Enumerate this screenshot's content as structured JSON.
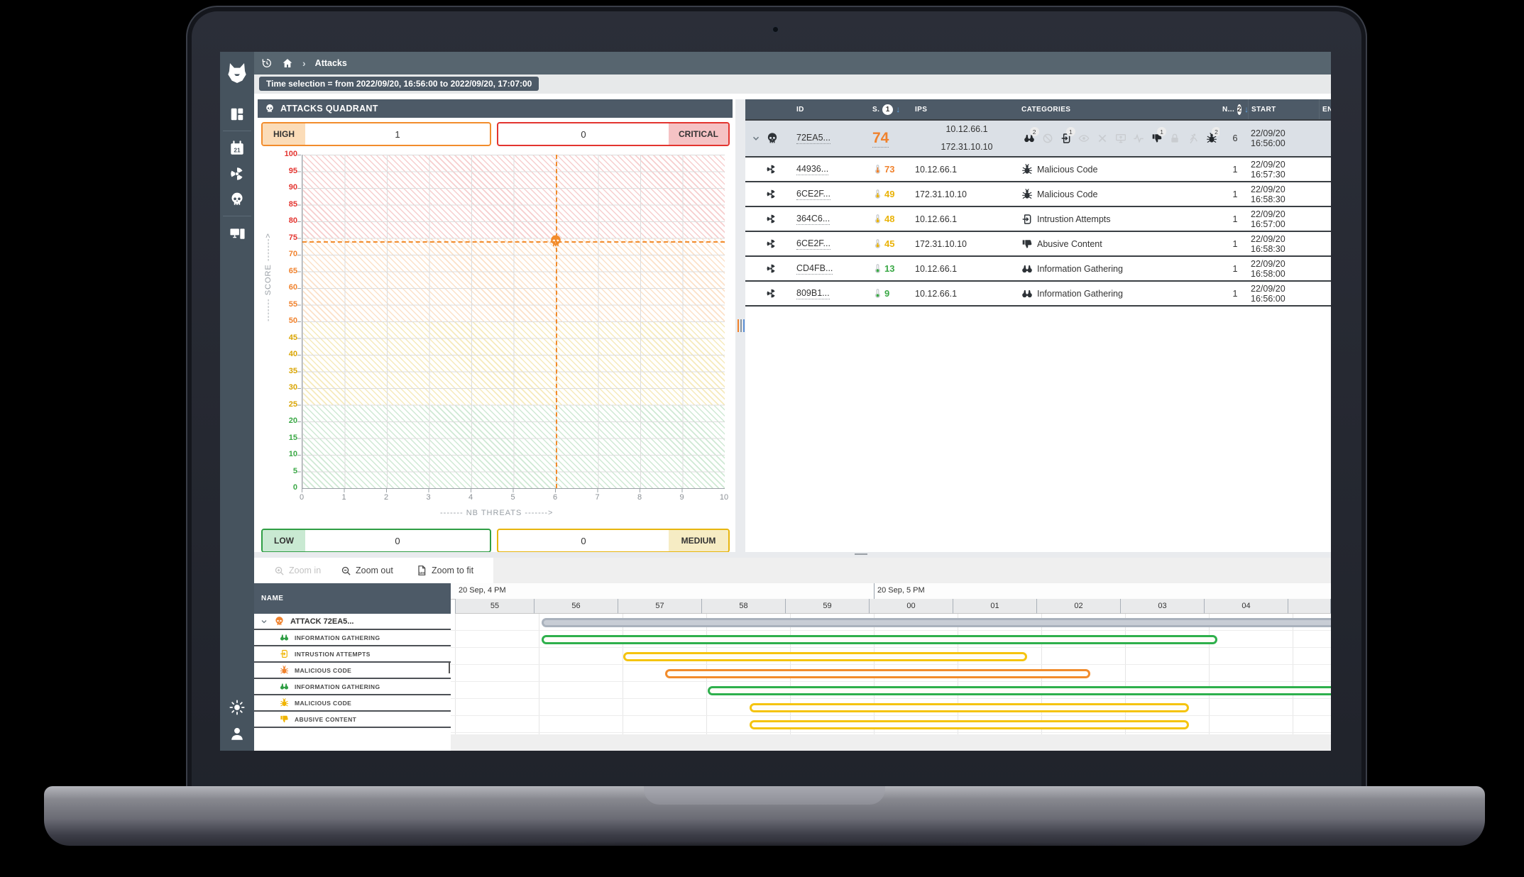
{
  "app": {
    "breadcrumb_page": "Attacks",
    "time_selection": "Time selection = from 2022/09/20, 16:56:00 to 2022/09/20, 17:07:00"
  },
  "sidebar": {
    "items": [
      {
        "icon": "dashboard"
      },
      {
        "icon": "calendar-21"
      },
      {
        "icon": "radiation"
      },
      {
        "icon": "skull"
      },
      {
        "icon": "devices"
      }
    ],
    "bottom": [
      {
        "icon": "sun"
      },
      {
        "icon": "user"
      }
    ]
  },
  "quadrant": {
    "title": "ATTACKS QUADRANT",
    "boxes": {
      "high": {
        "label": "HIGH",
        "value": "1",
        "border": "#f28c2c",
        "label_bg": "#fbdcb8"
      },
      "critical": {
        "label": "CRITICAL",
        "value": "0",
        "border": "#e3342f",
        "label_bg": "#f5c2c4"
      },
      "low": {
        "label": "LOW",
        "value": "0",
        "border": "#2f9e44",
        "label_bg": "#c9e9d2"
      },
      "medium": {
        "label": "MEDIUM",
        "value": "0",
        "border": "#e7b50e",
        "label_bg": "#f6ecc4"
      }
    }
  },
  "chart_data": [
    {
      "type": "scatter",
      "title": "ATTACKS QUADRANT",
      "xlabel": "------- NB THREATS ------->",
      "ylabel": "------- SCORE ------->",
      "xlim": [
        0,
        10
      ],
      "ylim": [
        0,
        100
      ],
      "x_ticks": [
        0,
        1,
        2,
        3,
        4,
        5,
        6,
        7,
        8,
        9,
        10
      ],
      "y_tick_step": 5,
      "grid": true,
      "bands": [
        {
          "range": [
            75,
            100
          ],
          "color": "#e3342f",
          "severity": "critical"
        },
        {
          "range": [
            50,
            75
          ],
          "color": "#f0822d",
          "severity": "high"
        },
        {
          "range": [
            25,
            50
          ],
          "color": "#d9a400",
          "severity": "medium"
        },
        {
          "range": [
            0,
            25
          ],
          "color": "#3aa845",
          "severity": "low"
        }
      ],
      "points": [
        {
          "x": 6,
          "y": 74,
          "marker": "skull",
          "color": "#f28c2c",
          "label": "ATTACK 72EA5..."
        }
      ],
      "crosshair": {
        "x": 6,
        "y": 74
      }
    },
    {
      "type": "gantt",
      "window": [
        "16:55",
        "17:05"
      ],
      "rows": [
        {
          "name": "ATTACK 72EA5...",
          "start": "16:56:00",
          "end": ">17:05"
        },
        {
          "name": "INFORMATION GATHERING",
          "start": "16:56:00",
          "end": "17:04:00"
        },
        {
          "name": "INTRUSTION ATTEMPTS",
          "start": "16:57:00",
          "end": "17:01:45"
        },
        {
          "name": "MALICIOUS CODE",
          "start": "16:57:30",
          "end": "17:02:30"
        },
        {
          "name": "INFORMATION GATHERING",
          "start": "16:58:00",
          "end": ">17:05"
        },
        {
          "name": "MALICIOUS CODE",
          "start": "16:58:30",
          "end": "17:03:40"
        },
        {
          "name": "ABUSIVE CONTENT",
          "start": "16:58:30",
          "end": "17:03:40"
        }
      ]
    }
  ],
  "table": {
    "columns": [
      {
        "label": "ID"
      },
      {
        "label": "S.",
        "badge": "1",
        "sort": "desc"
      },
      {
        "label": "IPS"
      },
      {
        "label": "CATEGORIES"
      },
      {
        "label": "N...",
        "badge": "2",
        "sort": "desc"
      },
      {
        "label": "START"
      },
      {
        "label": "EN"
      }
    ],
    "group_row": {
      "id": "72EA5...",
      "score": "74",
      "score_color": "#f0822d",
      "ips": [
        "10.12.66.1",
        "172.31.10.10"
      ],
      "n": "6",
      "start": "22/09/20 16:56:00",
      "category_icons": [
        {
          "icon": "binoculars",
          "count": "2",
          "active": true
        },
        {
          "icon": "no-sign",
          "active": false
        },
        {
          "icon": "intrusion",
          "count": "1",
          "active": true
        },
        {
          "icon": "eye",
          "active": false
        },
        {
          "icon": "cross",
          "active": false
        },
        {
          "icon": "monitor",
          "active": false
        },
        {
          "icon": "pulse",
          "active": false
        },
        {
          "icon": "thumbs-down",
          "count": "1",
          "active": true
        },
        {
          "icon": "lock",
          "active": false
        },
        {
          "icon": "runner",
          "active": false
        },
        {
          "icon": "bug",
          "count": "2",
          "active": true
        }
      ]
    },
    "rows": [
      {
        "id": "44936...",
        "score": "73",
        "color": "#f0822d",
        "ip": "10.12.66.1",
        "cat_icon": "bug",
        "category": "Malicious Code",
        "n": "1",
        "start": "22/09/20 16:57:30"
      },
      {
        "id": "6CE2F...",
        "score": "49",
        "color": "#eab308",
        "ip": "172.31.10.10",
        "cat_icon": "bug",
        "category": "Malicious Code",
        "n": "1",
        "start": "22/09/20 16:58:30"
      },
      {
        "id": "364C6...",
        "score": "48",
        "color": "#eab308",
        "ip": "10.12.66.1",
        "cat_icon": "intrusion",
        "category": "Intrustion Attempts",
        "n": "1",
        "start": "22/09/20 16:57:00"
      },
      {
        "id": "6CE2F...",
        "score": "45",
        "color": "#eab308",
        "ip": "172.31.10.10",
        "cat_icon": "thumbs-down",
        "category": "Abusive Content",
        "n": "1",
        "start": "22/09/20 16:58:30"
      },
      {
        "id": "CD4FB...",
        "score": "13",
        "color": "#3aa845",
        "ip": "10.12.66.1",
        "cat_icon": "binoculars",
        "category": "Information Gathering",
        "n": "1",
        "start": "22/09/20 16:58:00"
      },
      {
        "id": "809B1...",
        "score": "9",
        "color": "#3aa845",
        "ip": "10.12.66.1",
        "cat_icon": "binoculars",
        "category": "Information Gathering",
        "n": "1",
        "start": "22/09/20 16:56:00"
      }
    ]
  },
  "gantt": {
    "toolbar": {
      "zoom_in": "Zoom in",
      "zoom_out": "Zoom out",
      "zoom_fit": "Zoom to fit"
    },
    "name_header": "NAME",
    "time_groups": [
      {
        "label": "20 Sep, 4 PM"
      },
      {
        "label": "20 Sep, 5 PM"
      }
    ],
    "ticks": [
      "55",
      "56",
      "57",
      "58",
      "59",
      "00",
      "01",
      "02",
      "03",
      "04"
    ],
    "rows": [
      {
        "name": "ATTACK 72EA5...",
        "icon": "skull",
        "icon_color": "#f0822d",
        "group": true,
        "bar": {
          "left_pct": 9.8,
          "width_pct": 90.2,
          "color": "#aab2bd",
          "solid": true,
          "to_edge": true
        }
      },
      {
        "name": "INFORMATION GATHERING",
        "icon": "binoculars",
        "icon_color": "#2f9e44",
        "bar": {
          "left_pct": 9.8,
          "width_pct": 76.3,
          "color": "#2eb04c"
        }
      },
      {
        "name": "INTRUSTION ATTEMPTS",
        "icon": "intrusion",
        "icon_color": "#f0b400",
        "bar": {
          "left_pct": 19.1,
          "width_pct": 45.4,
          "color": "#f5c40f"
        }
      },
      {
        "name": "MALICIOUS CODE",
        "icon": "bug",
        "icon_color": "#f0822d",
        "bar": {
          "left_pct": 23.9,
          "width_pct": 47.8,
          "color": "#f28c2c"
        }
      },
      {
        "name": "INFORMATION GATHERING",
        "icon": "binoculars",
        "icon_color": "#2f9e44",
        "bar": {
          "left_pct": 28.7,
          "width_pct": 71.3,
          "color": "#2eb04c",
          "to_edge": true
        }
      },
      {
        "name": "MALICIOUS CODE",
        "icon": "bug",
        "icon_color": "#f0b400",
        "bar": {
          "left_pct": 33.5,
          "width_pct": 49.4,
          "color": "#f5c40f"
        }
      },
      {
        "name": "ABUSIVE CONTENT",
        "icon": "thumbs-down",
        "icon_color": "#f0b400",
        "bar": {
          "left_pct": 33.5,
          "width_pct": 49.4,
          "color": "#f5c40f"
        }
      }
    ]
  },
  "colors": {
    "header_slate": "#4d5a67",
    "topbar": "#57656f",
    "sidebar": "#46535e",
    "critical": "#e3342f",
    "high": "#f0822d",
    "medium": "#eab308",
    "low": "#3aa845",
    "sort_arrow": "#63a4e0"
  },
  "icons": {
    "skull": "☠",
    "radiation": "☢",
    "no-sign": "⊘",
    "cross": "✕",
    "chevron-down": "⌄",
    "chevron-right": "›",
    "sort-down": "↓",
    "scroll-left": "◀"
  }
}
